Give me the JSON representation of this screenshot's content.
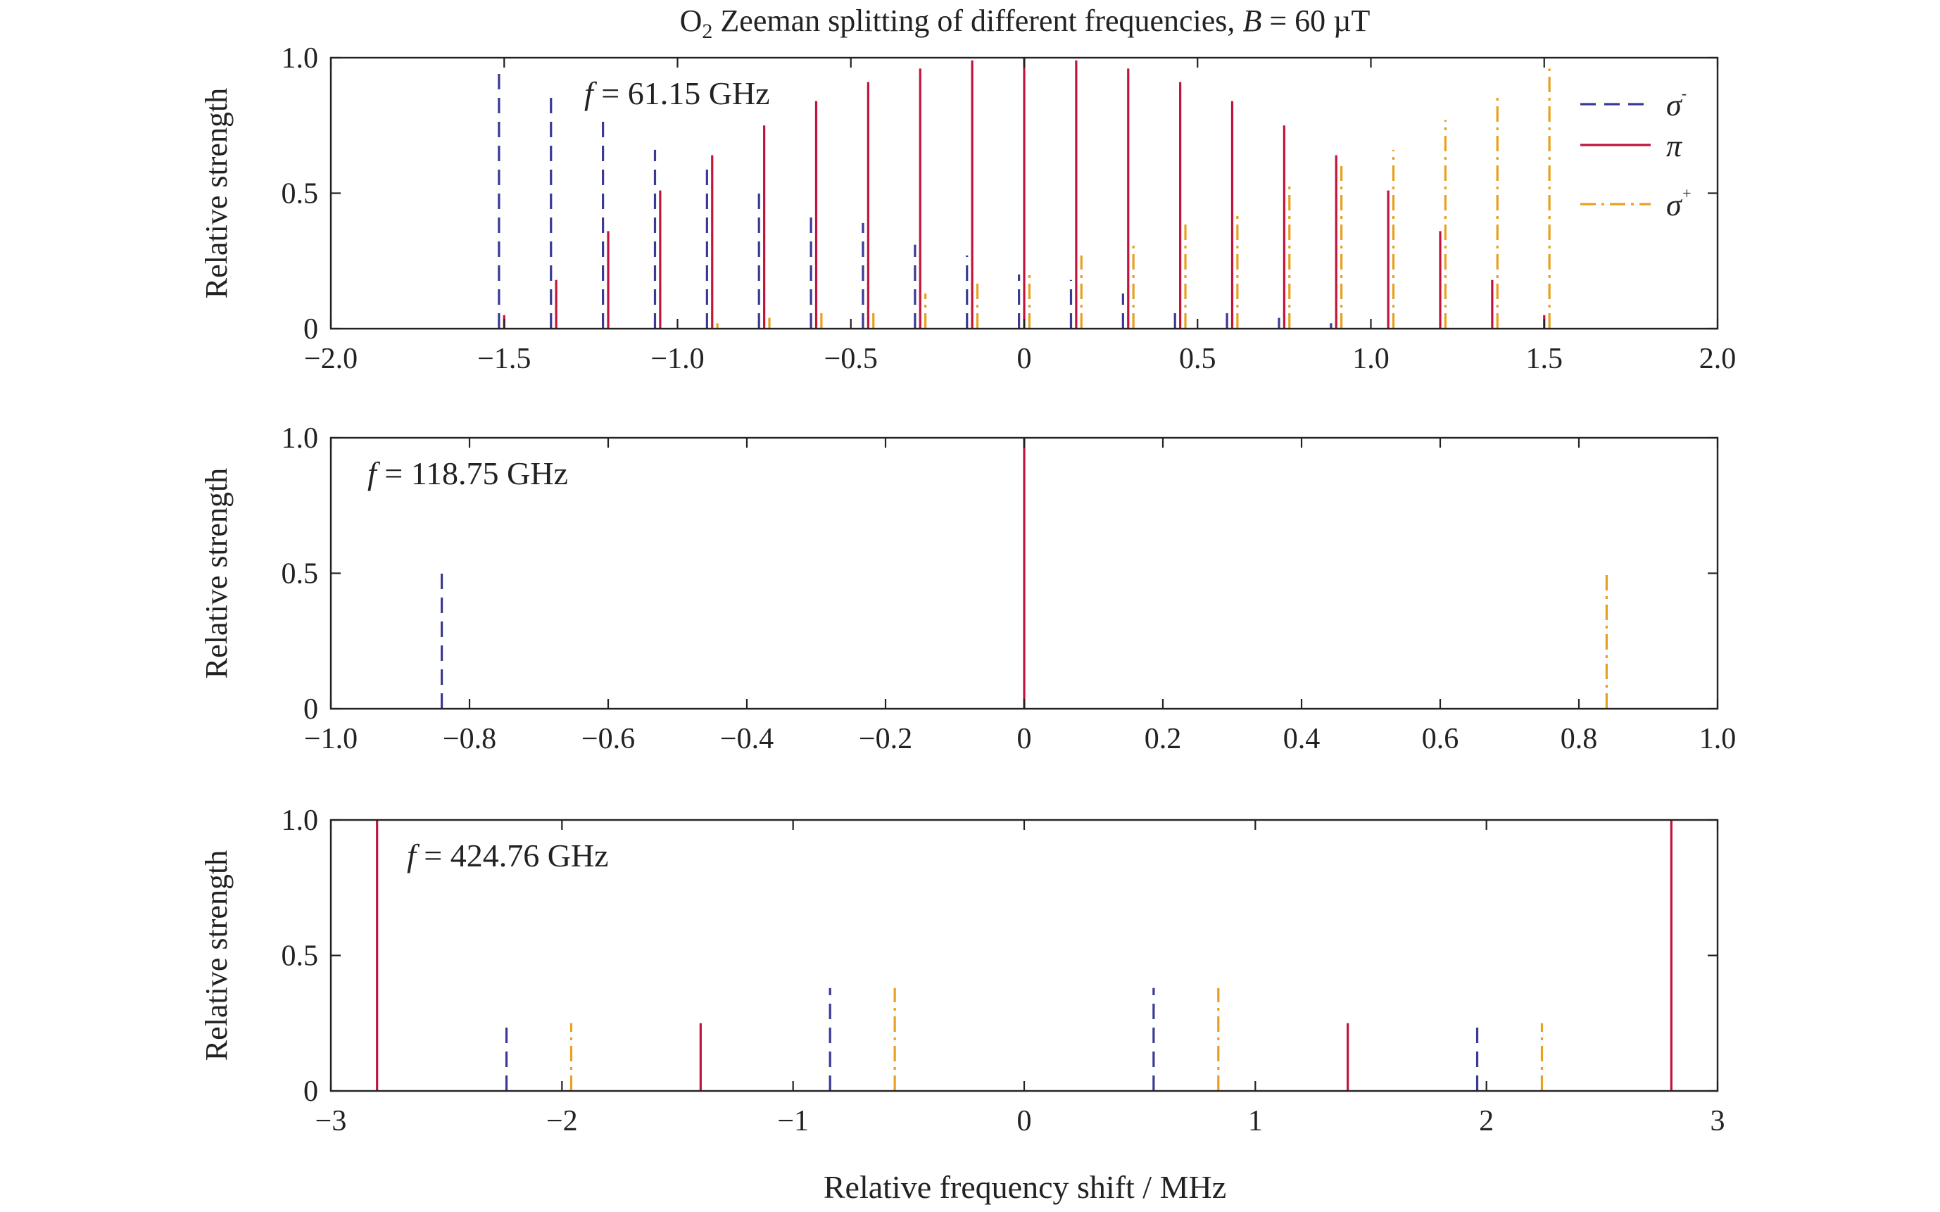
{
  "figure": {
    "title_parts": {
      "pre": "O",
      "sub": "2",
      "mid": " Zeeman splitting of different frequencies, ",
      "var": "B",
      "post": " = 60 µT"
    },
    "xlabel": "Relative frequency shift / MHz"
  },
  "legend": {
    "entries": [
      {
        "symbol": "σ",
        "sup": "-",
        "style": "dashed",
        "color": "#3a3a96"
      },
      {
        "symbol": "π",
        "sup": "",
        "style": "solid",
        "color": "#c0143c"
      },
      {
        "symbol": "σ",
        "sup": "+",
        "style": "dashdot",
        "color": "#e8a020"
      }
    ]
  },
  "colors": {
    "sigma_minus": "#3a3a96",
    "pi": "#c0143c",
    "sigma_plus": "#e8a020",
    "frame": "#222222"
  },
  "chart_data": [
    {
      "type": "bar",
      "annotation_var": "f",
      "annotation_value": " = 61.15 GHz",
      "ylabel": "Relative strength",
      "xlim": [
        -2.0,
        2.0
      ],
      "ylim": [
        0,
        1.0
      ],
      "xticks": [
        -2.0,
        -1.5,
        -1.0,
        -0.5,
        0,
        0.5,
        1.0,
        1.5,
        2.0
      ],
      "xtick_labels": [
        "−2.0",
        "−1.5",
        "−1.0",
        "−0.5",
        "0",
        "0.5",
        "1.0",
        "1.5",
        "2.0"
      ],
      "yticks": [
        0,
        0.5,
        1.0
      ],
      "ytick_labels": [
        "0",
        "0.5",
        "1.0"
      ],
      "series": [
        {
          "name": "σ-",
          "style": "dashed",
          "color": "#3a3a96",
          "x": [
            -1.515,
            -1.365,
            -1.215,
            -1.065,
            -0.915,
            -0.765,
            -0.615,
            -0.465,
            -0.315,
            -0.165,
            -0.015,
            0.135,
            0.285,
            0.435,
            0.585,
            0.735,
            0.885
          ],
          "y": [
            0.96,
            0.86,
            0.77,
            0.66,
            0.6,
            0.53,
            0.43,
            0.39,
            0.31,
            0.27,
            0.2,
            0.18,
            0.13,
            0.07,
            0.07,
            0.04,
            0.02
          ]
        },
        {
          "name": "π",
          "style": "solid",
          "color": "#c0143c",
          "x": [
            -1.5,
            -1.35,
            -1.2,
            -1.05,
            -0.9,
            -0.75,
            -0.6,
            -0.45,
            -0.3,
            -0.15,
            0,
            0.15,
            0.3,
            0.45,
            0.6,
            0.75,
            0.9,
            1.05,
            1.2,
            1.35,
            1.5
          ],
          "y": [
            0.05,
            0.18,
            0.36,
            0.51,
            0.64,
            0.75,
            0.84,
            0.91,
            0.96,
            0.99,
            1.0,
            0.99,
            0.96,
            0.91,
            0.84,
            0.75,
            0.64,
            0.51,
            0.36,
            0.18,
            0.05
          ]
        },
        {
          "name": "σ+",
          "style": "dashdot",
          "color": "#e8a020",
          "x": [
            -0.885,
            -0.735,
            -0.585,
            -0.435,
            -0.285,
            -0.135,
            0.015,
            0.165,
            0.315,
            0.465,
            0.615,
            0.765,
            0.915,
            1.065,
            1.215,
            1.365,
            1.515
          ],
          "y": [
            0.02,
            0.04,
            0.07,
            0.07,
            0.13,
            0.18,
            0.2,
            0.27,
            0.31,
            0.39,
            0.43,
            0.53,
            0.6,
            0.66,
            0.77,
            0.86,
            0.96
          ]
        }
      ]
    },
    {
      "type": "bar",
      "annotation_var": "f",
      "annotation_value": " = 118.75 GHz",
      "ylabel": "Relative strength",
      "xlim": [
        -1.0,
        1.0
      ],
      "ylim": [
        0,
        1.0
      ],
      "xticks": [
        -1.0,
        -0.8,
        -0.6,
        -0.4,
        -0.2,
        0,
        0.2,
        0.4,
        0.6,
        0.8,
        1.0
      ],
      "xtick_labels": [
        "−1.0",
        "−0.8",
        "−0.6",
        "−0.4",
        "−0.2",
        "0",
        "0.2",
        "0.4",
        "0.6",
        "0.8",
        "1.0"
      ],
      "yticks": [
        0,
        0.5,
        1.0
      ],
      "ytick_labels": [
        "0",
        "0.5",
        "1.0"
      ],
      "series": [
        {
          "name": "σ-",
          "style": "dashed",
          "color": "#3a3a96",
          "x": [
            -0.84
          ],
          "y": [
            0.5
          ]
        },
        {
          "name": "π",
          "style": "solid",
          "color": "#c0143c",
          "x": [
            0
          ],
          "y": [
            1.0
          ]
        },
        {
          "name": "σ+",
          "style": "dashdot",
          "color": "#e8a020",
          "x": [
            0.84
          ],
          "y": [
            0.5
          ]
        }
      ]
    },
    {
      "type": "bar",
      "annotation_var": "f",
      "annotation_value": " = 424.76 GHz",
      "ylabel": "Relative strength",
      "xlim": [
        -3,
        3
      ],
      "ylim": [
        0,
        1.0
      ],
      "xticks": [
        -3,
        -2,
        -1,
        0,
        1,
        2,
        3
      ],
      "xtick_labels": [
        "−3",
        "−2",
        "−1",
        "0",
        "1",
        "2",
        "3"
      ],
      "yticks": [
        0,
        0.5,
        1.0
      ],
      "ytick_labels": [
        "0",
        "0.5",
        "1.0"
      ],
      "series": [
        {
          "name": "σ-",
          "style": "dashed",
          "color": "#3a3a96",
          "x": [
            -2.24,
            -0.84,
            0.56,
            1.96
          ],
          "y": [
            0.25,
            0.38,
            0.38,
            0.25
          ]
        },
        {
          "name": "π",
          "style": "solid",
          "color": "#c0143c",
          "x": [
            -2.8,
            -1.4,
            1.4,
            2.8
          ],
          "y": [
            1.0,
            0.25,
            0.25,
            1.0
          ]
        },
        {
          "name": "σ+",
          "style": "dashdot",
          "color": "#e8a020",
          "x": [
            -1.96,
            -0.56,
            0.84,
            2.24
          ],
          "y": [
            0.25,
            0.38,
            0.38,
            0.25
          ]
        }
      ]
    }
  ]
}
